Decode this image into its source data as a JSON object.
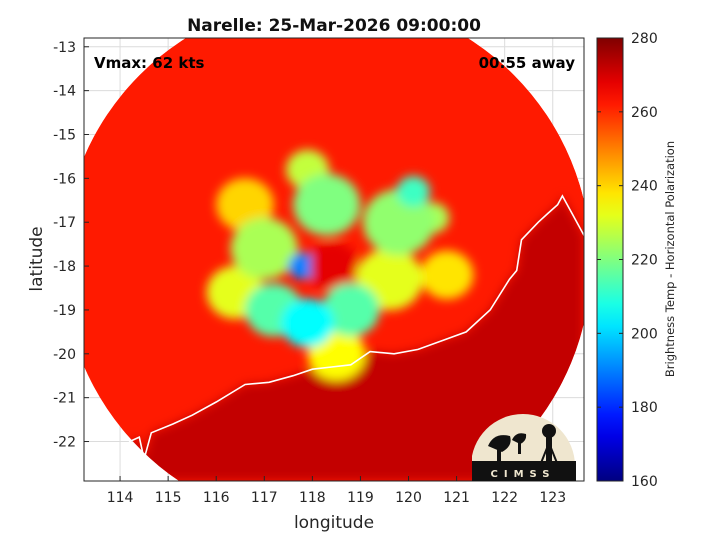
{
  "chart_data": {
    "type": "heatmap",
    "title": "Narelle: 25-Mar-2026 09:00:00",
    "xlabel": "longitude",
    "ylabel": "latitude",
    "xlim": [
      113.25,
      123.65
    ],
    "ylim": [
      -22.9,
      -12.8
    ],
    "xticks": [
      114,
      115,
      116,
      117,
      118,
      119,
      120,
      121,
      122,
      123
    ],
    "yticks": [
      -13,
      -14,
      -15,
      -16,
      -17,
      -18,
      -19,
      -20,
      -21,
      -22
    ],
    "grid": true,
    "annotations": {
      "vmax": "Vmax: 62 kts",
      "away": "00:55 away"
    },
    "colorbar": {
      "label": "Brightness Temp - Horizontal Polarization",
      "min": 160,
      "max": 280,
      "ticks": [
        160,
        180,
        200,
        220,
        240,
        260,
        280
      ],
      "colormap": "jet"
    },
    "swath": {
      "center": [
        118.3,
        -17.9
      ],
      "radius_deg": 5.5,
      "background_value": 262
    },
    "storm_features": [
      {
        "lon": 118.4,
        "lat": -18.0,
        "value": 268,
        "radius": 0.55,
        "label": "eye"
      },
      {
        "lon": 117.8,
        "lat": -18.0,
        "value": 190,
        "radius": 0.3
      },
      {
        "lon": 117.9,
        "lat": -19.3,
        "value": 205,
        "radius": 0.55
      },
      {
        "lon": 117.2,
        "lat": -19.0,
        "value": 215,
        "radius": 0.6
      },
      {
        "lon": 118.8,
        "lat": -19.0,
        "value": 215,
        "radius": 0.6
      },
      {
        "lon": 117.0,
        "lat": -17.6,
        "value": 225,
        "radius": 0.7
      },
      {
        "lon": 118.3,
        "lat": -16.6,
        "value": 220,
        "radius": 0.7
      },
      {
        "lon": 119.8,
        "lat": -17.0,
        "value": 222,
        "radius": 0.75
      },
      {
        "lon": 120.1,
        "lat": -16.3,
        "value": 212,
        "radius": 0.35
      },
      {
        "lon": 117.9,
        "lat": -15.8,
        "value": 228,
        "radius": 0.45
      },
      {
        "lon": 119.6,
        "lat": -18.3,
        "value": 232,
        "radius": 0.7
      },
      {
        "lon": 116.4,
        "lat": -18.6,
        "value": 232,
        "radius": 0.6
      },
      {
        "lon": 118.5,
        "lat": -20.0,
        "value": 235,
        "radius": 0.6
      },
      {
        "lon": 116.6,
        "lat": -16.6,
        "value": 240,
        "radius": 0.6
      },
      {
        "lon": 120.8,
        "lat": -18.2,
        "value": 238,
        "radius": 0.55
      },
      {
        "lon": 120.5,
        "lat": -16.9,
        "value": 225,
        "radius": 0.35
      }
    ],
    "coastline": [
      [
        114.1,
        -22.85
      ],
      [
        114.3,
        -22.6
      ],
      [
        114.2,
        -22.0
      ],
      [
        114.4,
        -21.9
      ],
      [
        114.5,
        -22.4
      ],
      [
        114.65,
        -21.8
      ],
      [
        115.1,
        -21.6
      ],
      [
        115.5,
        -21.4
      ],
      [
        116.0,
        -21.1
      ],
      [
        116.6,
        -20.7
      ],
      [
        117.1,
        -20.65
      ],
      [
        117.6,
        -20.5
      ],
      [
        118.0,
        -20.35
      ],
      [
        118.4,
        -20.3
      ],
      [
        118.8,
        -20.25
      ],
      [
        119.2,
        -19.95
      ],
      [
        119.7,
        -20.0
      ],
      [
        120.2,
        -19.9
      ],
      [
        120.7,
        -19.7
      ],
      [
        121.2,
        -19.5
      ],
      [
        121.7,
        -19.0
      ],
      [
        122.1,
        -18.3
      ],
      [
        122.25,
        -18.1
      ],
      [
        122.35,
        -17.4
      ],
      [
        122.7,
        -17.0
      ],
      [
        122.9,
        -16.8
      ],
      [
        123.1,
        -16.6
      ],
      [
        123.2,
        -16.4
      ],
      [
        123.4,
        -16.8
      ],
      [
        123.65,
        -17.3
      ]
    ]
  },
  "logo": {
    "text": "CIMSS"
  },
  "colors": {
    "axis": "#262626",
    "grid": "#dcdcdc",
    "coast": "#ffffff",
    "logo_bg": "#efe6cf",
    "logo_ink": "#111111"
  }
}
